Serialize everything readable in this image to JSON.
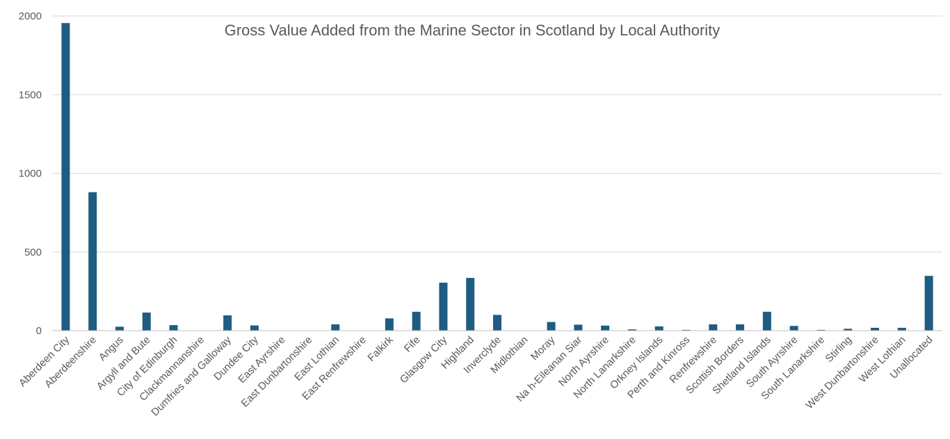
{
  "chart_data": {
    "type": "bar",
    "title": "Gross Value Added from the Marine Sector in Scotland by Local Authority",
    "xlabel": "",
    "ylabel": "",
    "ylim": [
      0,
      2000
    ],
    "yticks": [
      0,
      500,
      1000,
      1500,
      2000
    ],
    "grid": true,
    "legend": "none",
    "bar_color": "#1F5C82",
    "categories": [
      "Aberdeen City",
      "Aberdeenshire",
      "Angus",
      "Argyll and Bute",
      "City of Edinburgh",
      "Clackmannanshire",
      "Dumfries and Galloway",
      "Dundee City",
      "East Ayrshire",
      "East Dunbartonshire",
      "East Lothian",
      "East Renfrewshire",
      "Falkirk",
      "Fife",
      "Glasgow City",
      "Highland",
      "Inverclyde",
      "Midlothian",
      "Moray",
      "Na h-Eileanan Siar",
      "North Ayrshire",
      "North Lanarkshire",
      "Orkney Islands",
      "Perth and Kinross",
      "Renfrewshire",
      "Scottish Borders",
      "Shetland Islands",
      "South Ayrshire",
      "South Lanarkshire",
      "Stirling",
      "West Dunbartonshire",
      "West Lothian",
      "Unallocated"
    ],
    "values": [
      1955,
      880,
      25,
      115,
      35,
      0,
      97,
      33,
      0,
      0,
      40,
      0,
      78,
      120,
      305,
      335,
      100,
      0,
      55,
      38,
      32,
      8,
      27,
      5,
      40,
      40,
      120,
      30,
      5,
      12,
      18,
      18,
      348
    ]
  }
}
